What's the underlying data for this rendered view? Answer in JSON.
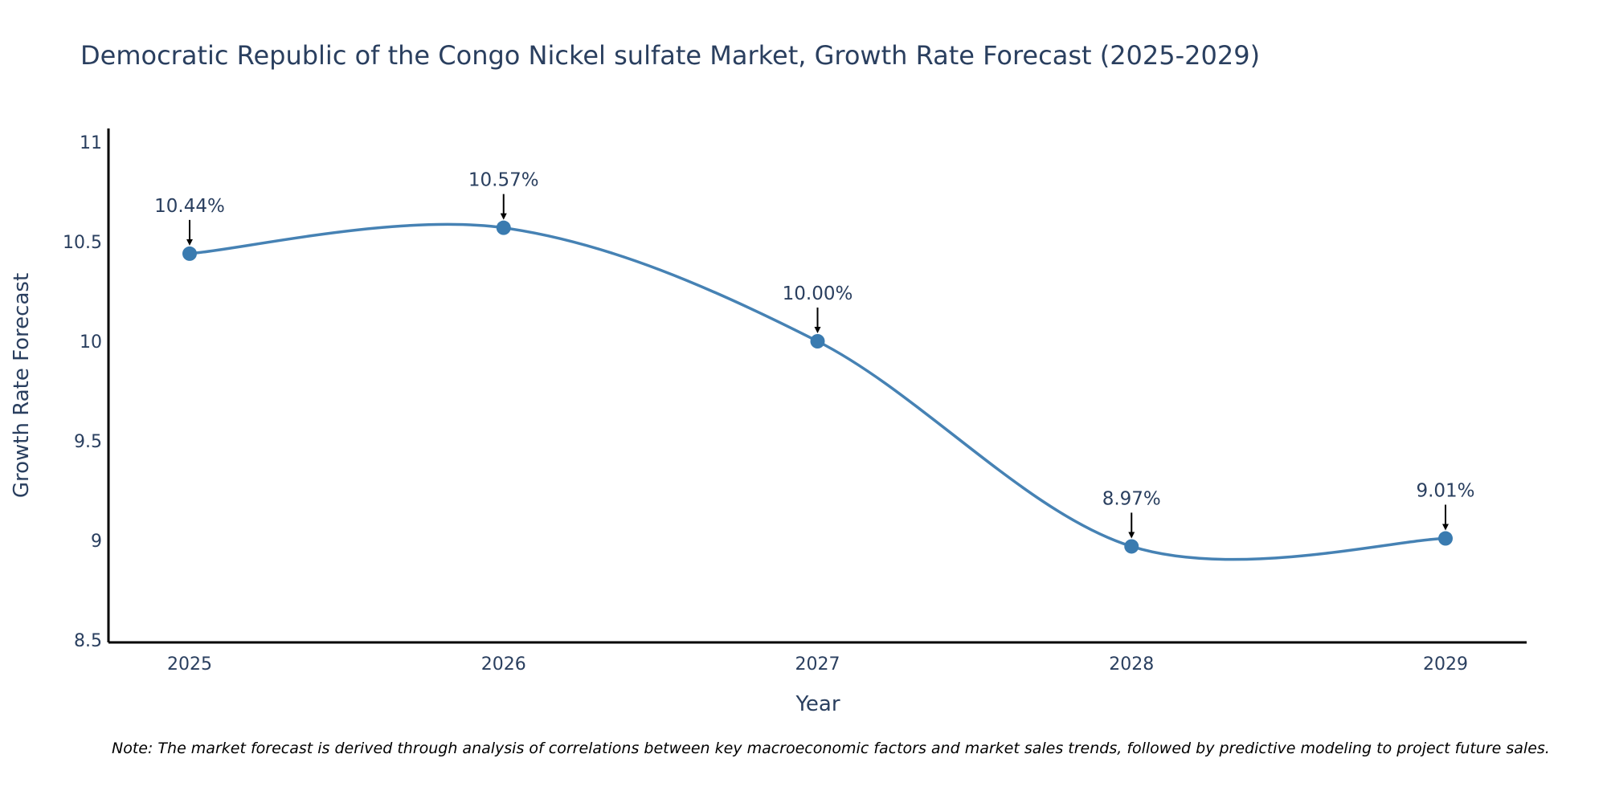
{
  "chart_data": {
    "type": "line",
    "title": "Democratic Republic of the Congo Nickel sulfate Market, Growth Rate Forecast (2025-2029)",
    "xlabel": "Year",
    "ylabel": "Growth Rate Forecast",
    "categories": [
      "2025",
      "2026",
      "2027",
      "2028",
      "2029"
    ],
    "values": [
      10.44,
      10.57,
      10.0,
      8.97,
      9.01
    ],
    "data_labels": [
      "10.44%",
      "10.57%",
      "10.00%",
      "8.97%",
      "9.01%"
    ],
    "ylim": [
      8.5,
      11
    ],
    "yticks": [
      8.5,
      9,
      9.5,
      10,
      10.5,
      11
    ],
    "ytick_labels": [
      "8.5",
      "9",
      "9.5",
      "10",
      "10.5",
      "11"
    ],
    "line_color": "#4682b4",
    "marker_color": "#3a7bb0",
    "smooth": true,
    "grid": false
  },
  "note": "Note: The market forecast is derived through analysis of correlations between key macroeconomic factors and market sales trends, followed by predictive modeling to project future sales."
}
